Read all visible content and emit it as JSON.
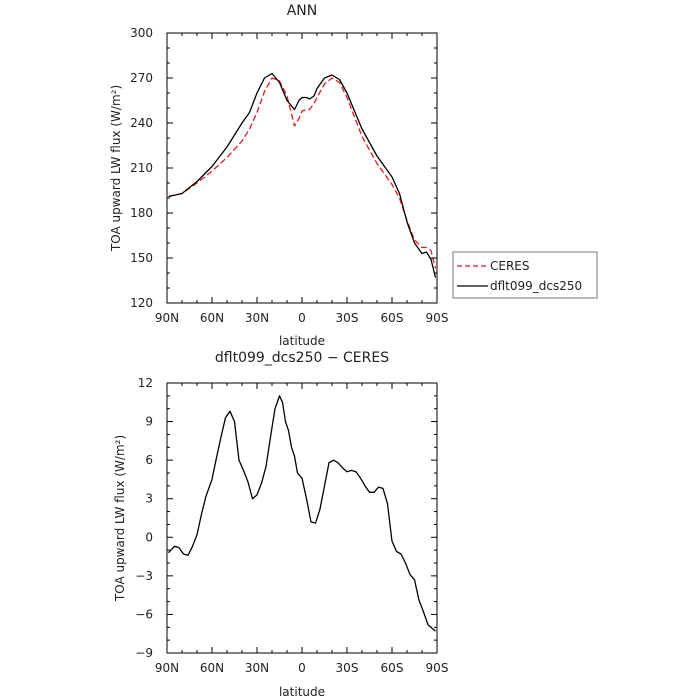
{
  "chart_data": [
    {
      "type": "line",
      "title": "ANN",
      "xlabel": "latitude",
      "ylabel": "TOA upward LW flux (W/m²)",
      "xlim": [
        90,
        -90
      ],
      "ylim": [
        120,
        300
      ],
      "x_ticks": [
        90,
        60,
        30,
        0,
        -30,
        -60,
        -90
      ],
      "x_tick_labels": [
        "90N",
        "60N",
        "30N",
        "0",
        "30S",
        "60S",
        "90S"
      ],
      "y_ticks": [
        120,
        150,
        180,
        210,
        240,
        270,
        300
      ],
      "y_tick_labels": [
        "120",
        "150",
        "180",
        "210",
        "240",
        "270",
        "300"
      ],
      "legend": "right",
      "series": [
        {
          "name": "CERES",
          "color": "#e31a1c",
          "dash": true,
          "x": [
            89,
            80,
            70,
            60,
            50,
            40,
            35,
            30,
            25,
            20,
            15,
            10,
            5,
            2,
            0,
            -3,
            -5,
            -8,
            -10,
            -15,
            -20,
            -25,
            -30,
            -35,
            -40,
            -50,
            -60,
            -65,
            -70,
            -75,
            -80,
            -83,
            -86,
            -89
          ],
          "y": [
            191,
            193,
            200,
            208,
            217,
            228,
            236,
            247,
            261,
            270,
            268,
            258,
            238,
            243,
            248,
            249,
            249,
            253,
            257,
            266,
            270,
            267,
            257,
            244,
            231,
            213,
            199,
            190,
            175,
            162,
            157,
            157,
            155,
            143
          ]
        },
        {
          "name": "dflt099_dcs250",
          "color": "#000000",
          "dash": false,
          "x": [
            89,
            80,
            70,
            60,
            50,
            40,
            35,
            30,
            25,
            20,
            15,
            10,
            5,
            2,
            0,
            -3,
            -5,
            -8,
            -10,
            -15,
            -20,
            -25,
            -30,
            -35,
            -40,
            -50,
            -60,
            -65,
            -70,
            -75,
            -80,
            -83,
            -86,
            -89
          ],
          "y": [
            191,
            193,
            201,
            211,
            224,
            240,
            247,
            260,
            270,
            273,
            267,
            255,
            249,
            255,
            257,
            257,
            256,
            258,
            263,
            270,
            272,
            269,
            260,
            248,
            236,
            218,
            204,
            193,
            174,
            160,
            153,
            154,
            149,
            137
          ]
        }
      ]
    },
    {
      "type": "line",
      "title": "dflt099_dcs250 − CERES",
      "xlabel": "latitude",
      "ylabel": "TOA upward LW flux (W/m²)",
      "xlim": [
        90,
        -90
      ],
      "ylim": [
        -9,
        12
      ],
      "x_ticks": [
        90,
        60,
        30,
        0,
        -30,
        -60,
        -90
      ],
      "x_tick_labels": [
        "90N",
        "60N",
        "30N",
        "0",
        "30S",
        "60S",
        "90S"
      ],
      "y_ticks": [
        -9,
        -6,
        -3,
        0,
        3,
        6,
        9,
        12
      ],
      "y_tick_labels": [
        "−9",
        "−6",
        "−3",
        "0",
        "3",
        "6",
        "9",
        "12"
      ],
      "series": [
        {
          "color": "#000000",
          "dash": false,
          "x": [
            89,
            85,
            82,
            79,
            76,
            73,
            70,
            67,
            64,
            60,
            57,
            54,
            51,
            48,
            45,
            42,
            39,
            36,
            33,
            30,
            27,
            24,
            21,
            18,
            15,
            13,
            11,
            9,
            7,
            5,
            3,
            0,
            -3,
            -6,
            -9,
            -12,
            -15,
            -18,
            -21,
            -24,
            -27,
            -30,
            -33,
            -36,
            -39,
            -42,
            -45,
            -48,
            -51,
            -54,
            -57,
            -60,
            -63,
            -66,
            -69,
            -72,
            -75,
            -78,
            -81,
            -84,
            -87,
            -89
          ],
          "y": [
            -1.2,
            -0.7,
            -0.8,
            -1.3,
            -1.4,
            -0.7,
            0.2,
            1.8,
            3.2,
            4.5,
            6.2,
            7.8,
            9.3,
            9.8,
            9.0,
            6.0,
            5.2,
            4.3,
            3.0,
            3.3,
            4.2,
            5.5,
            7.8,
            10.0,
            11.0,
            10.5,
            9.0,
            8.3,
            7.0,
            6.3,
            5.0,
            4.6,
            3.0,
            1.2,
            1.1,
            2.2,
            4.0,
            5.8,
            6.0,
            5.8,
            5.4,
            5.1,
            5.2,
            5.1,
            4.6,
            4.0,
            3.5,
            3.5,
            3.9,
            3.8,
            2.6,
            -0.3,
            -1.1,
            -1.3,
            -2.0,
            -2.9,
            -3.3,
            -4.9,
            -5.8,
            -6.8,
            -7.1,
            -7.3
          ]
        }
      ]
    }
  ]
}
